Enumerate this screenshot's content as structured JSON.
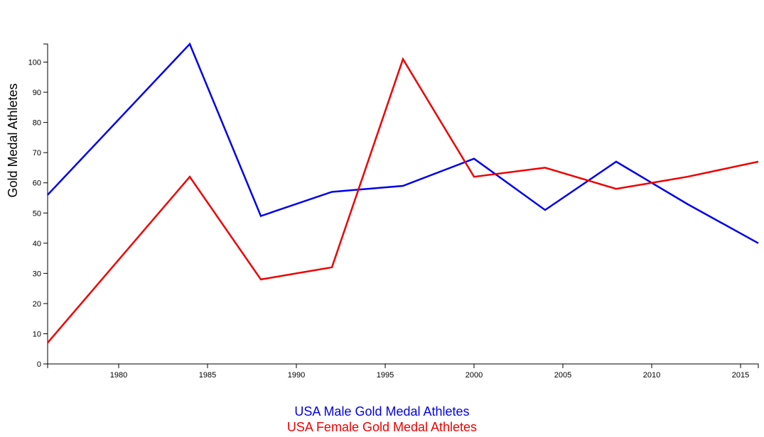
{
  "chart_data": {
    "type": "line",
    "ylabel": "Gold Medal Athletes",
    "xlabel": "",
    "xlim": [
      1976,
      2016
    ],
    "ylim": [
      0,
      106
    ],
    "x_ticks": [
      1980,
      1985,
      1990,
      1995,
      2000,
      2005,
      2010,
      2015
    ],
    "y_ticks": [
      0,
      10,
      20,
      30,
      40,
      50,
      60,
      70,
      80,
      90,
      100
    ],
    "grid": false,
    "legend_position": "bottom-center",
    "series": [
      {
        "name": "USA Male Gold Medal Athletes",
        "color": "#0000ee",
        "x": [
          1976,
          1984,
          1988,
          1992,
          1996,
          2000,
          2004,
          2008,
          2012,
          2016
        ],
        "values": [
          56,
          106,
          49,
          57,
          59,
          68,
          51,
          67,
          53,
          40
        ]
      },
      {
        "name": "USA Female Gold Medal Athletes",
        "color": "#ee0000",
        "x": [
          1976,
          1984,
          1988,
          1992,
          1996,
          2000,
          2004,
          2008,
          2012,
          2016
        ],
        "values": [
          7,
          62,
          28,
          32,
          101,
          62,
          65,
          58,
          62,
          67
        ]
      }
    ]
  }
}
